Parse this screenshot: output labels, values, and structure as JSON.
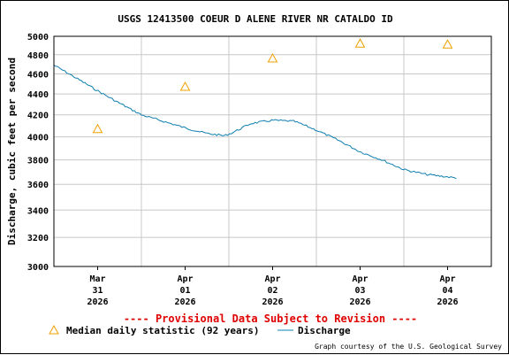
{
  "chart_data": {
    "type": "line",
    "title": "USGS 12413500 COEUR D ALENE RIVER NR CATALDO ID",
    "ylabel": "Discharge, cubic feet per second",
    "xlabel": "",
    "ylim": [
      3000,
      5000
    ],
    "y_scale": "log",
    "grid": true,
    "y_ticks": [
      3000,
      3200,
      3400,
      3600,
      3800,
      4000,
      4200,
      4400,
      4600,
      4800,
      5000
    ],
    "x_ticks": [
      {
        "month": "Mar",
        "day": "31",
        "year": "2026",
        "x": 0.5
      },
      {
        "month": "Apr",
        "day": "01",
        "year": "2026",
        "x": 1.5
      },
      {
        "month": "Apr",
        "day": "02",
        "year": "2026",
        "x": 2.5
      },
      {
        "month": "Apr",
        "day": "03",
        "year": "2026",
        "x": 3.5
      },
      {
        "month": "Apr",
        "day": "04",
        "year": "2026",
        "x": 4.5
      }
    ],
    "xlim": [
      0,
      5
    ],
    "series": [
      {
        "name": "Discharge",
        "color": "#0e7fb0",
        "x": [
          0.0,
          0.25,
          0.5,
          0.75,
          1.0,
          1.25,
          1.5,
          1.75,
          1.95,
          2.05,
          2.25,
          2.5,
          2.75,
          3.0,
          3.25,
          3.5,
          3.75,
          4.0,
          4.25,
          4.5,
          4.6
        ],
        "y": [
          4690,
          4560,
          4430,
          4310,
          4200,
          4140,
          4080,
          4030,
          4010,
          4040,
          4120,
          4150,
          4140,
          4060,
          3970,
          3870,
          3800,
          3720,
          3680,
          3660,
          3650
        ]
      },
      {
        "name": "Median daily statistic (92 years)",
        "color": "#f0a000",
        "marker": "triangle",
        "x": [
          0.5,
          1.5,
          2.5,
          3.5,
          4.5
        ],
        "y": [
          4070,
          4470,
          4760,
          4920,
          4910
        ]
      }
    ],
    "annotation": "---- Provisional Data Subject to Revision ----",
    "legend": {
      "placement": "bottom",
      "median_label": "Median daily statistic (92 years)",
      "discharge_label": "Discharge"
    },
    "courtesy": "Graph courtesy of the U.S. Geological Survey"
  }
}
